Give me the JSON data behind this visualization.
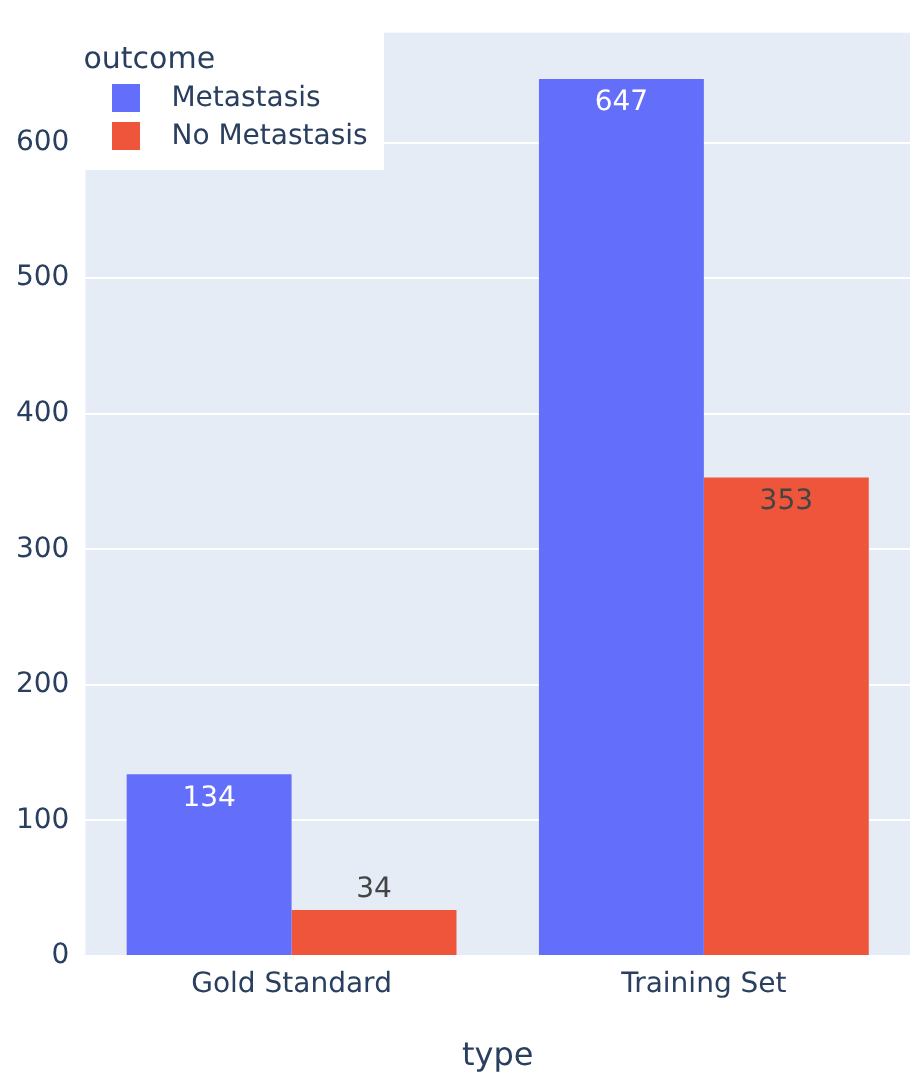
{
  "chart_data": {
    "type": "bar",
    "xlabel": "type",
    "legend_title": "outcome",
    "legend": "top left",
    "grid": "y",
    "data_labels": true,
    "categories": [
      "Gold Standard",
      "Training Set"
    ],
    "series": [
      {
        "name": "Metastasis",
        "color": "#636efa",
        "values": [
          134,
          647
        ]
      },
      {
        "name": "No Metastasis",
        "color": "#ef553b",
        "values": [
          34,
          353
        ]
      }
    ],
    "ylim": [
      0,
      681
    ],
    "yticks": [
      0,
      100,
      200,
      300,
      400,
      500,
      600
    ]
  }
}
